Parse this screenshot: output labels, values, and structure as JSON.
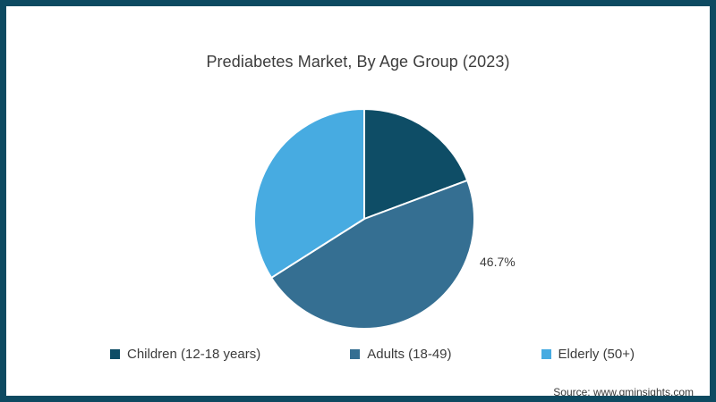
{
  "title": "Prediabetes Market, By Age Group (2023)",
  "source": "Source: www.gminsights.com",
  "colors": {
    "frame_border": "#0d4a61",
    "background": "#ffffff",
    "text": "#3c3c3c",
    "slice_divider": "#ffffff"
  },
  "chart_data": {
    "type": "pie",
    "title": "Prediabetes Market, By Age Group (2023)",
    "direction": "clockwise",
    "start_angle_deg": 0,
    "legend_position": "bottom",
    "slices": [
      {
        "label": "Children (12-18 years)",
        "value": 19.3,
        "color": "#0e4d66",
        "data_label": null
      },
      {
        "label": "Adults (18-49)",
        "value": 46.7,
        "color": "#356f92",
        "data_label": "46.7%"
      },
      {
        "label": "Elderly (50+)",
        "value": 34.0,
        "color": "#47abe1",
        "data_label": null
      }
    ]
  }
}
